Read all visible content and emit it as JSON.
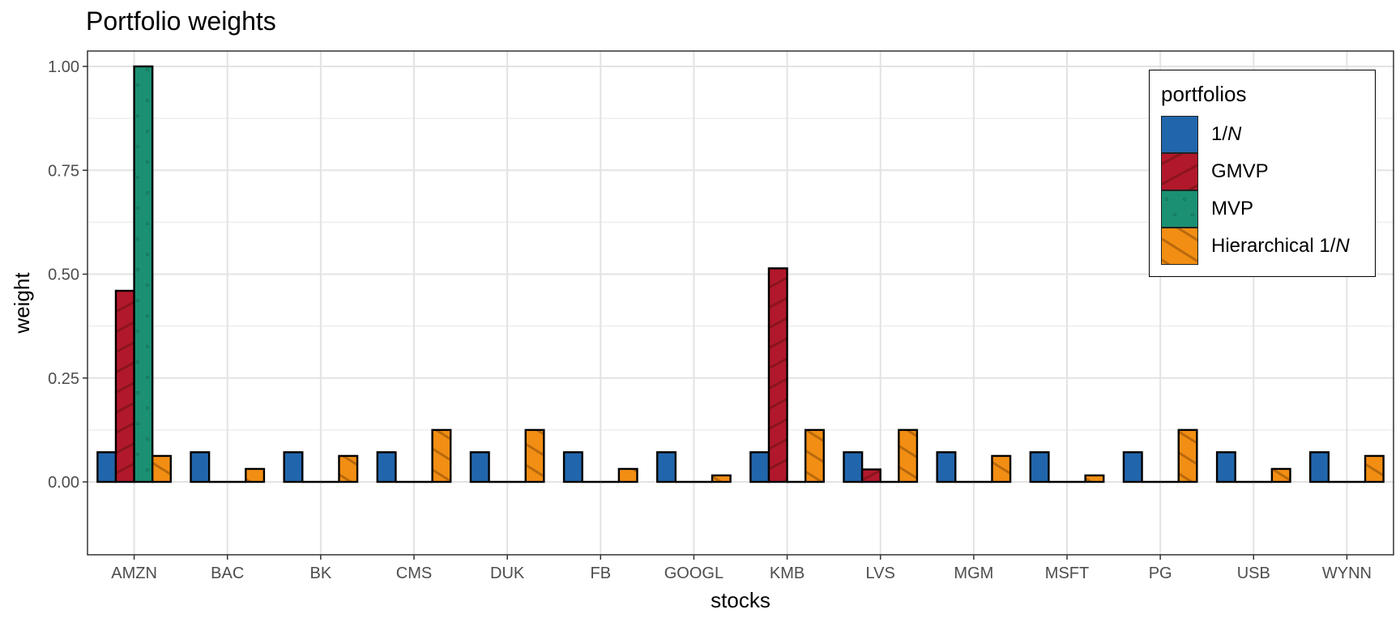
{
  "chart_data": {
    "type": "bar",
    "title": "Portfolio weights",
    "xlabel": "stocks",
    "ylabel": "weight",
    "ylim": [
      -0.05,
      1.05
    ],
    "yticks": [
      0.0,
      0.25,
      0.5,
      0.75,
      1.0
    ],
    "ytick_labels": [
      "0.00",
      "0.25",
      "0.50",
      "0.75",
      "1.00"
    ],
    "grid": true,
    "legend_title": "portfolios",
    "legend_position": "top-right (inside)",
    "categories": [
      "AMZN",
      "BAC",
      "BK",
      "CMS",
      "DUK",
      "FB",
      "GOOGL",
      "KMB",
      "LVS",
      "MGM",
      "MSFT",
      "PG",
      "USB",
      "WYNN"
    ],
    "series": [
      {
        "name": "1/N",
        "color": "#2166ac",
        "pattern": "none",
        "values": [
          0.0714,
          0.0714,
          0.0714,
          0.0714,
          0.0714,
          0.0714,
          0.0714,
          0.0714,
          0.0714,
          0.0714,
          0.0714,
          0.0714,
          0.0714,
          0.0714
        ]
      },
      {
        "name": "GMVP",
        "color": "#b2182b",
        "pattern": "stripe-up",
        "values": [
          0.46,
          0.0,
          0.0,
          0.0,
          0.0,
          0.0,
          0.0,
          0.514,
          0.03,
          0.0,
          0.0,
          0.0,
          0.0,
          0.0
        ]
      },
      {
        "name": "MVP",
        "color": "#1b9072",
        "pattern": "dots",
        "values": [
          1.0,
          0.0,
          0.0,
          0.0,
          0.0,
          0.0,
          0.0,
          0.0,
          0.0,
          0.0,
          0.0,
          0.0,
          0.0,
          0.0
        ]
      },
      {
        "name": "Hierarchical 1/N",
        "color": "#f28e13",
        "pattern": "stripe-down",
        "values": [
          0.0625,
          0.03125,
          0.0625,
          0.125,
          0.125,
          0.03125,
          0.015625,
          0.125,
          0.125,
          0.0625,
          0.015625,
          0.125,
          0.03125,
          0.0625
        ]
      }
    ]
  },
  "legend": {
    "title": "portfolios",
    "items": [
      {
        "prefix": "1/",
        "italic": "N"
      },
      {
        "prefix": "GMVP",
        "italic": ""
      },
      {
        "prefix": "MVP",
        "italic": ""
      },
      {
        "prefix": "Hierarchical 1/",
        "italic": "N"
      }
    ]
  }
}
